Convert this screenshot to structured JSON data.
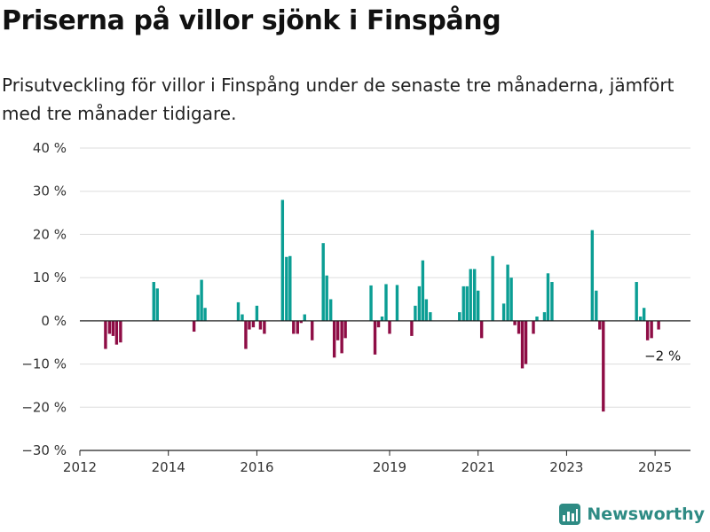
{
  "header": {
    "title": "Priserna på villor sjönk i Finspång",
    "subtitle": "Prisutveckling för villor i Finspång under de senaste tre månaderna, jämfört med tre månader tidigare."
  },
  "brand": {
    "name": "Newsworthy"
  },
  "colors": {
    "positive": "#0b9e94",
    "negative": "#8e0d45",
    "grid": "#dddddd",
    "axis": "#222222"
  },
  "chart_data": {
    "type": "bar",
    "title": "Priserna på villor sjönk i Finspång",
    "subtitle": "Prisutveckling för villor i Finspång under de senaste tre månaderna, jämfört med tre månader tidigare.",
    "xlabel": "",
    "ylabel": "",
    "ylim": [
      -30,
      40
    ],
    "xlim": [
      2012,
      2025.8
    ],
    "grid": true,
    "y_ticks": [
      {
        "value": 40,
        "label": "40 %"
      },
      {
        "value": 30,
        "label": "30 %"
      },
      {
        "value": 20,
        "label": "20 %"
      },
      {
        "value": 10,
        "label": "10 %"
      },
      {
        "value": 0,
        "label": "0 %"
      },
      {
        "value": -10,
        "label": "−10 %"
      },
      {
        "value": -20,
        "label": "−20 %"
      },
      {
        "value": -30,
        "label": "−30 %"
      }
    ],
    "x_ticks": [
      {
        "value": 2012,
        "label": "2012"
      },
      {
        "value": 2014,
        "label": "2014"
      },
      {
        "value": 2016,
        "label": "2016"
      },
      {
        "value": 2019,
        "label": "2019"
      },
      {
        "value": 2021,
        "label": "2021"
      },
      {
        "value": 2023,
        "label": "2023"
      },
      {
        "value": 2025,
        "label": "2025"
      }
    ],
    "series": [
      {
        "points": [
          {
            "x": 2012.58,
            "y": -6.5
          },
          {
            "x": 2012.67,
            "y": -3.0
          },
          {
            "x": 2012.75,
            "y": -3.5
          },
          {
            "x": 2012.83,
            "y": -5.5
          },
          {
            "x": 2012.92,
            "y": -5.0
          },
          {
            "x": 2013.67,
            "y": 9.0
          },
          {
            "x": 2013.75,
            "y": 7.5
          },
          {
            "x": 2014.58,
            "y": -2.5
          },
          {
            "x": 2014.67,
            "y": 6.0
          },
          {
            "x": 2014.75,
            "y": 9.5
          },
          {
            "x": 2014.83,
            "y": 3.0
          },
          {
            "x": 2015.58,
            "y": 4.3
          },
          {
            "x": 2015.67,
            "y": 1.5
          },
          {
            "x": 2015.75,
            "y": -6.5
          },
          {
            "x": 2015.83,
            "y": -2.0
          },
          {
            "x": 2015.92,
            "y": -1.5
          },
          {
            "x": 2016.0,
            "y": 3.5
          },
          {
            "x": 2016.08,
            "y": -2.0
          },
          {
            "x": 2016.17,
            "y": -3.0
          },
          {
            "x": 2016.58,
            "y": 28.0
          },
          {
            "x": 2016.67,
            "y": 14.8
          },
          {
            "x": 2016.75,
            "y": 15.0
          },
          {
            "x": 2016.83,
            "y": -3.0
          },
          {
            "x": 2016.92,
            "y": -3.0
          },
          {
            "x": 2017.0,
            "y": -0.5
          },
          {
            "x": 2017.08,
            "y": 1.5
          },
          {
            "x": 2017.25,
            "y": -4.5
          },
          {
            "x": 2017.5,
            "y": 18.0
          },
          {
            "x": 2017.58,
            "y": 10.5
          },
          {
            "x": 2017.67,
            "y": 5.0
          },
          {
            "x": 2017.75,
            "y": -8.5
          },
          {
            "x": 2017.83,
            "y": -4.5
          },
          {
            "x": 2017.92,
            "y": -7.5
          },
          {
            "x": 2018.0,
            "y": -4.0
          },
          {
            "x": 2018.58,
            "y": 8.2
          },
          {
            "x": 2018.67,
            "y": -7.8
          },
          {
            "x": 2018.75,
            "y": -1.5
          },
          {
            "x": 2018.83,
            "y": 1.0
          },
          {
            "x": 2018.92,
            "y": 8.5
          },
          {
            "x": 2019.0,
            "y": -3.0
          },
          {
            "x": 2019.17,
            "y": 8.3
          },
          {
            "x": 2019.5,
            "y": -3.5
          },
          {
            "x": 2019.58,
            "y": 3.5
          },
          {
            "x": 2019.67,
            "y": 8.0
          },
          {
            "x": 2019.75,
            "y": 14.0
          },
          {
            "x": 2019.83,
            "y": 5.0
          },
          {
            "x": 2019.92,
            "y": 2.0
          },
          {
            "x": 2020.58,
            "y": 2.0
          },
          {
            "x": 2020.67,
            "y": 8.0
          },
          {
            "x": 2020.75,
            "y": 8.0
          },
          {
            "x": 2020.83,
            "y": 12.0
          },
          {
            "x": 2020.92,
            "y": 12.0
          },
          {
            "x": 2021.0,
            "y": 7.0
          },
          {
            "x": 2021.08,
            "y": -4.0
          },
          {
            "x": 2021.33,
            "y": 15.0
          },
          {
            "x": 2021.58,
            "y": 4.0
          },
          {
            "x": 2021.67,
            "y": 13.0
          },
          {
            "x": 2021.75,
            "y": 10.0
          },
          {
            "x": 2021.83,
            "y": -1.0
          },
          {
            "x": 2021.92,
            "y": -3.0
          },
          {
            "x": 2022.0,
            "y": -11.0
          },
          {
            "x": 2022.08,
            "y": -10.0
          },
          {
            "x": 2022.25,
            "y": -3.0
          },
          {
            "x": 2022.33,
            "y": 1.0
          },
          {
            "x": 2022.5,
            "y": 2.0
          },
          {
            "x": 2022.58,
            "y": 11.0
          },
          {
            "x": 2022.67,
            "y": 9.0
          },
          {
            "x": 2023.58,
            "y": 21.0
          },
          {
            "x": 2023.67,
            "y": 7.0
          },
          {
            "x": 2023.75,
            "y": -2.0
          },
          {
            "x": 2023.83,
            "y": -21.0
          },
          {
            "x": 2024.58,
            "y": 9.0
          },
          {
            "x": 2024.67,
            "y": 1.0
          },
          {
            "x": 2024.75,
            "y": 3.0
          },
          {
            "x": 2024.83,
            "y": -4.5
          },
          {
            "x": 2024.92,
            "y": -4.0
          },
          {
            "x": 2025.08,
            "y": -2.0
          }
        ]
      }
    ],
    "annotations": [
      {
        "x": 2025.08,
        "y": -2.0,
        "text": "−2 %"
      }
    ]
  }
}
